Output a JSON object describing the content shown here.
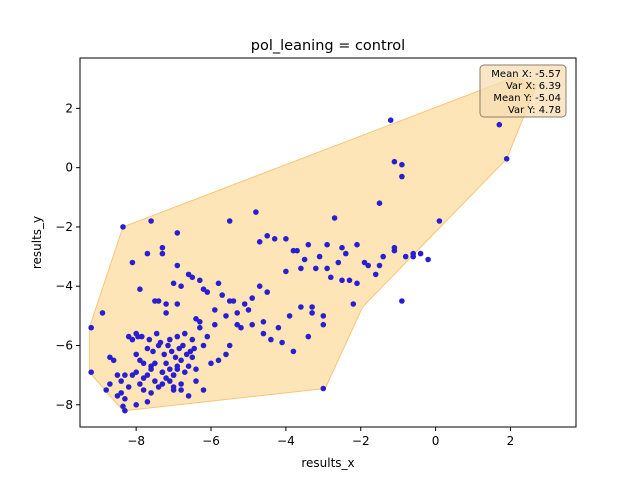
{
  "chart_data": {
    "type": "scatter",
    "title": "pol_leaning = control",
    "xlabel": "results_x",
    "ylabel": "results_y",
    "xlim": [
      -9.5,
      3.75
    ],
    "ylim": [
      -8.75,
      3.7
    ],
    "xticks": [
      -8,
      -6,
      -4,
      -2,
      0,
      2
    ],
    "yticks": [
      -8,
      -6,
      -4,
      -2,
      0,
      2
    ],
    "xtick_labels": [
      "−8",
      "−6",
      "−4",
      "−2",
      "0",
      "2"
    ],
    "ytick_labels": [
      "−8",
      "−6",
      "−4",
      "−2",
      "0",
      "2"
    ],
    "grid": false,
    "point_color": "#2a1fd0",
    "hull_color": "#fde5b8",
    "hull_edge_color": "#f5c77a",
    "stats_box": {
      "lines": [
        "Mean X: -5.57",
        "Var X: 6.39",
        "Mean Y: -5.04",
        "Var Y: 4.78"
      ],
      "fill": "#f5deb3",
      "edge": "#8b7d6b"
    },
    "hull": [
      [
        -9.25,
        -5.4
      ],
      [
        -9.25,
        -6.9
      ],
      [
        -8.35,
        -8.2
      ],
      [
        -7.95,
        -8.15
      ],
      [
        -2.95,
        -7.45
      ],
      [
        -1.95,
        -4.7
      ],
      [
        1.9,
        0.3
      ],
      [
        2.7,
        2.8
      ],
      [
        2.1,
        3.05
      ],
      [
        -8.35,
        -2.0
      ],
      [
        -9.25,
        -5.4
      ]
    ],
    "x": [
      -9.2,
      -9.2,
      -8.9,
      -8.7,
      -8.5,
      -8.4,
      -8.3,
      -8.4,
      -8.5,
      -8.2,
      -8.3,
      -8.6,
      -8.7,
      -8.8,
      -8.35,
      -8.3,
      -8.1,
      -8.0,
      -7.9,
      -7.8,
      -7.7,
      -7.6,
      -7.5,
      -7.4,
      -7.3,
      -7.2,
      -7.1,
      -7.0,
      -6.9,
      -6.8,
      -8.0,
      -7.9,
      -7.8,
      -7.6,
      -7.5,
      -7.3,
      -7.2,
      -7.1,
      -7.0,
      -6.9,
      -6.8,
      -6.7,
      -6.6,
      -6.5,
      -6.4,
      -8.1,
      -7.95,
      -7.7,
      -7.55,
      -7.4,
      -7.25,
      -7.15,
      -7.05,
      -6.95,
      -6.85,
      -6.75,
      -6.65,
      -6.55,
      -6.45,
      -8.2,
      -8.0,
      -7.85,
      -7.65,
      -7.45,
      -7.35,
      -7.1,
      -6.9,
      -6.7,
      -6.5,
      -6.3,
      -6.2,
      -6.1,
      -5.9,
      -7.8,
      -7.6,
      -7.3,
      -7.0,
      -6.8,
      -6.6,
      -6.4,
      -6.2,
      -6.0,
      -5.8,
      -5.6,
      -5.5,
      -5.3,
      -8.35,
      -8.1,
      -7.7,
      -7.3,
      -6.9,
      -6.5,
      -7.9,
      -7.5,
      -7.2,
      -6.9,
      -6.6,
      -6.3,
      -6.1,
      -5.9,
      -5.7,
      -5.5,
      -5.3,
      -5.1,
      -4.9,
      -4.7,
      -4.5,
      -7.6,
      -7.3,
      -7.0,
      -6.8,
      -6.2,
      -5.8,
      -5.4,
      -5.0,
      -4.6,
      -4.2,
      -3.9,
      -3.6,
      -3.3,
      -3.0,
      -8.0,
      -7.4,
      -7.2,
      -6.9,
      -6.4,
      -6.3,
      -5.6,
      -5.2,
      -4.9,
      -4.6,
      -4.4,
      -4.1,
      -3.8,
      -3.4,
      -3.0,
      -7.7,
      -7.0,
      -5.5,
      -4.8,
      -4.5,
      -4.0,
      -3.7,
      -3.4,
      -3.1,
      -2.9,
      -2.6,
      -2.3,
      -2.1,
      -1.8,
      -1.6,
      -4.0,
      -3.6,
      -3.3,
      -2.8,
      -2.5,
      -2.2,
      -1.9,
      -1.5,
      -1.1,
      -0.9,
      -0.6,
      -0.4,
      -0.2,
      0.1,
      -4.7,
      -4.3,
      -3.8,
      -3.5,
      -3.2,
      -2.9,
      -2.5,
      -2.4,
      -2.1,
      -1.4,
      -1.1,
      -0.6,
      -0.8,
      -1.2,
      -1.1,
      -0.9,
      -0.9,
      -1.5,
      -2.7,
      1.7,
      1.9,
      -3.0
    ],
    "y": [
      -5.4,
      -6.9,
      -4.9,
      -6.4,
      -7.0,
      -7.2,
      -7.0,
      -7.6,
      -7.7,
      -7.4,
      -7.8,
      -6.5,
      -7.3,
      -7.5,
      -8.05,
      -8.2,
      -7.0,
      -6.9,
      -7.3,
      -7.1,
      -7.0,
      -6.8,
      -7.2,
      -7.4,
      -6.9,
      -7.1,
      -7.2,
      -7.0,
      -6.8,
      -7.3,
      -6.3,
      -6.5,
      -6.6,
      -6.7,
      -6.6,
      -6.9,
      -6.6,
      -6.8,
      -7.0,
      -6.7,
      -6.5,
      -6.9,
      -6.7,
      -6.4,
      -6.8,
      -5.8,
      -5.7,
      -6.1,
      -6.2,
      -6.0,
      -6.3,
      -6.0,
      -6.2,
      -6.4,
      -6.1,
      -6.0,
      -6.3,
      -6.2,
      -6.1,
      -5.7,
      -5.6,
      -5.7,
      -5.8,
      -5.6,
      -5.9,
      -5.8,
      -5.7,
      -5.6,
      -5.8,
      -5.4,
      -6.0,
      -5.7,
      -5.3,
      -7.5,
      -7.6,
      -7.3,
      -7.4,
      -7.5,
      -7.7,
      -7.2,
      -7.5,
      -6.6,
      -6.5,
      -6.3,
      -6.0,
      -5.3,
      -2.0,
      -3.2,
      -2.9,
      -2.7,
      -2.2,
      -3.7,
      -4.1,
      -4.5,
      -4.6,
      -3.3,
      -3.6,
      -3.8,
      -4.2,
      -4.8,
      -4.3,
      -4.5,
      -4.9,
      -4.6,
      -4.4,
      -4.0,
      -4.2,
      -1.8,
      -2.9,
      -3.9,
      -4.0,
      -4.1,
      -3.9,
      -4.5,
      -4.8,
      -5.2,
      -5.4,
      -5.0,
      -4.7,
      -4.9,
      -5.0,
      -8.0,
      -4.5,
      -4.9,
      -4.6,
      -5.1,
      -5.2,
      -5.0,
      -5.4,
      -5.3,
      -5.6,
      -5.8,
      -5.9,
      -6.2,
      -5.7,
      -5.3,
      -7.9,
      -7.5,
      -1.8,
      -1.5,
      -2.3,
      -2.4,
      -2.8,
      -2.6,
      -3.0,
      -3.4,
      -3.2,
      -3.8,
      -3.9,
      -3.3,
      -3.6,
      -3.5,
      -3.4,
      -4.7,
      -3.7,
      -3.8,
      -4.6,
      -3.2,
      -3.3,
      -2.7,
      -4.5,
      -3.0,
      -2.9,
      -3.1,
      -1.8,
      -2.5,
      -2.4,
      -2.8,
      -3.1,
      -3.4,
      -2.6,
      -2.7,
      -2.9,
      -2.6,
      -3.0,
      -2.8,
      -2.9,
      -3.0,
      1.6,
      0.2,
      0.1,
      -0.3,
      -1.2,
      -1.7,
      1.45,
      0.3,
      -7.45
    ]
  }
}
